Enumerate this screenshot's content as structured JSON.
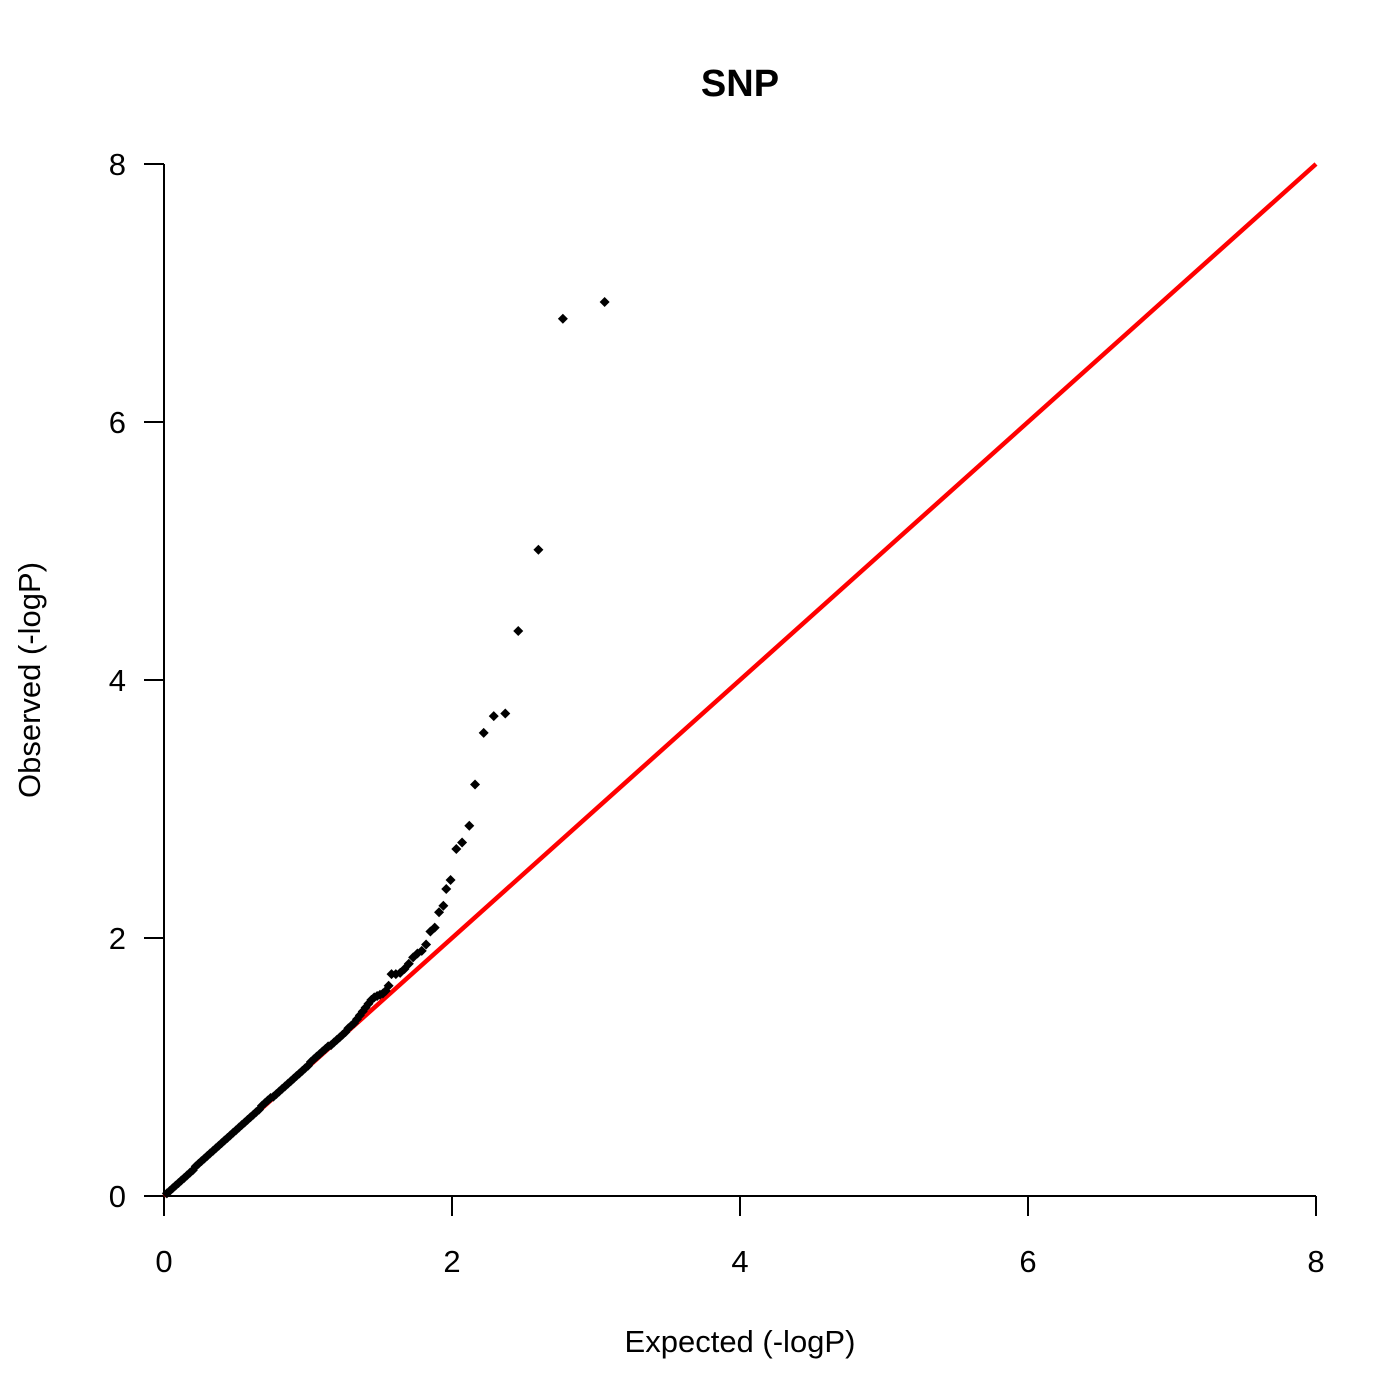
{
  "chart_data": {
    "type": "scatter",
    "title": "SNP",
    "xlabel": "Expected (-logP)",
    "ylabel": "Observed (-logP)",
    "xlim": [
      0,
      8
    ],
    "ylim": [
      0,
      8
    ],
    "xticks": [
      "0",
      "2",
      "4",
      "6",
      "8"
    ],
    "yticks": [
      "0",
      "2",
      "4",
      "6",
      "8"
    ],
    "grid": false,
    "reference_line": {
      "from": [
        0,
        0
      ],
      "to": [
        8,
        8
      ],
      "color": "#ff0000"
    },
    "point_color": "#000000",
    "points_dense": [
      [
        0.02,
        0.02
      ],
      [
        0.04,
        0.04
      ],
      [
        0.06,
        0.06
      ],
      [
        0.08,
        0.08
      ],
      [
        0.1,
        0.1
      ],
      [
        0.12,
        0.12
      ],
      [
        0.14,
        0.14
      ],
      [
        0.16,
        0.16
      ],
      [
        0.18,
        0.18
      ],
      [
        0.2,
        0.2
      ],
      [
        0.22,
        0.23
      ],
      [
        0.24,
        0.25
      ],
      [
        0.26,
        0.27
      ],
      [
        0.28,
        0.29
      ],
      [
        0.3,
        0.31
      ],
      [
        0.32,
        0.33
      ],
      [
        0.34,
        0.35
      ],
      [
        0.36,
        0.37
      ],
      [
        0.38,
        0.39
      ],
      [
        0.4,
        0.41
      ],
      [
        0.42,
        0.43
      ],
      [
        0.44,
        0.45
      ],
      [
        0.46,
        0.47
      ],
      [
        0.48,
        0.49
      ],
      [
        0.5,
        0.51
      ],
      [
        0.52,
        0.53
      ],
      [
        0.54,
        0.55
      ],
      [
        0.56,
        0.57
      ],
      [
        0.58,
        0.59
      ],
      [
        0.6,
        0.61
      ],
      [
        0.62,
        0.63
      ],
      [
        0.64,
        0.65
      ],
      [
        0.66,
        0.67
      ],
      [
        0.68,
        0.7
      ],
      [
        0.7,
        0.72
      ],
      [
        0.72,
        0.74
      ],
      [
        0.74,
        0.76
      ],
      [
        0.76,
        0.77
      ],
      [
        0.78,
        0.79
      ],
      [
        0.8,
        0.81
      ],
      [
        0.82,
        0.83
      ],
      [
        0.84,
        0.85
      ],
      [
        0.86,
        0.87
      ],
      [
        0.88,
        0.89
      ],
      [
        0.9,
        0.91
      ],
      [
        0.92,
        0.93
      ],
      [
        0.94,
        0.95
      ],
      [
        0.96,
        0.97
      ],
      [
        0.98,
        0.99
      ],
      [
        1.0,
        1.01
      ],
      [
        1.02,
        1.04
      ],
      [
        1.04,
        1.06
      ],
      [
        1.06,
        1.08
      ],
      [
        1.08,
        1.1
      ],
      [
        1.1,
        1.12
      ],
      [
        1.12,
        1.14
      ],
      [
        1.14,
        1.16
      ],
      [
        1.16,
        1.17
      ],
      [
        1.18,
        1.19
      ],
      [
        1.2,
        1.21
      ],
      [
        1.22,
        1.23
      ],
      [
        1.24,
        1.25
      ],
      [
        1.26,
        1.27
      ],
      [
        1.28,
        1.3
      ],
      [
        1.3,
        1.32
      ],
      [
        1.32,
        1.34
      ],
      [
        1.34,
        1.37
      ],
      [
        1.36,
        1.4
      ],
      [
        1.38,
        1.43
      ],
      [
        1.4,
        1.46
      ],
      [
        1.42,
        1.49
      ],
      [
        1.44,
        1.52
      ],
      [
        1.46,
        1.54
      ],
      [
        1.48,
        1.55
      ],
      [
        1.5,
        1.56
      ],
      [
        1.52,
        1.57
      ],
      [
        1.54,
        1.59
      ],
      [
        1.56,
        1.63
      ]
    ],
    "points_tail": [
      [
        1.58,
        1.72
      ],
      [
        1.61,
        1.72
      ],
      [
        1.64,
        1.73
      ],
      [
        1.67,
        1.76
      ],
      [
        1.7,
        1.8
      ],
      [
        1.73,
        1.85
      ],
      [
        1.76,
        1.88
      ],
      [
        1.79,
        1.9
      ],
      [
        1.82,
        1.95
      ],
      [
        1.85,
        2.05
      ],
      [
        1.88,
        2.08
      ],
      [
        1.91,
        2.2
      ],
      [
        1.94,
        2.25
      ],
      [
        1.99,
        2.45
      ],
      [
        1.96,
        2.38
      ],
      [
        2.03,
        2.69
      ],
      [
        2.07,
        2.74
      ],
      [
        2.12,
        2.87
      ],
      [
        2.16,
        3.19
      ],
      [
        2.22,
        3.59
      ],
      [
        2.29,
        3.72
      ],
      [
        2.37,
        3.74
      ],
      [
        2.46,
        4.38
      ],
      [
        2.6,
        5.01
      ],
      [
        2.77,
        6.8
      ],
      [
        3.06,
        6.93
      ]
    ]
  }
}
